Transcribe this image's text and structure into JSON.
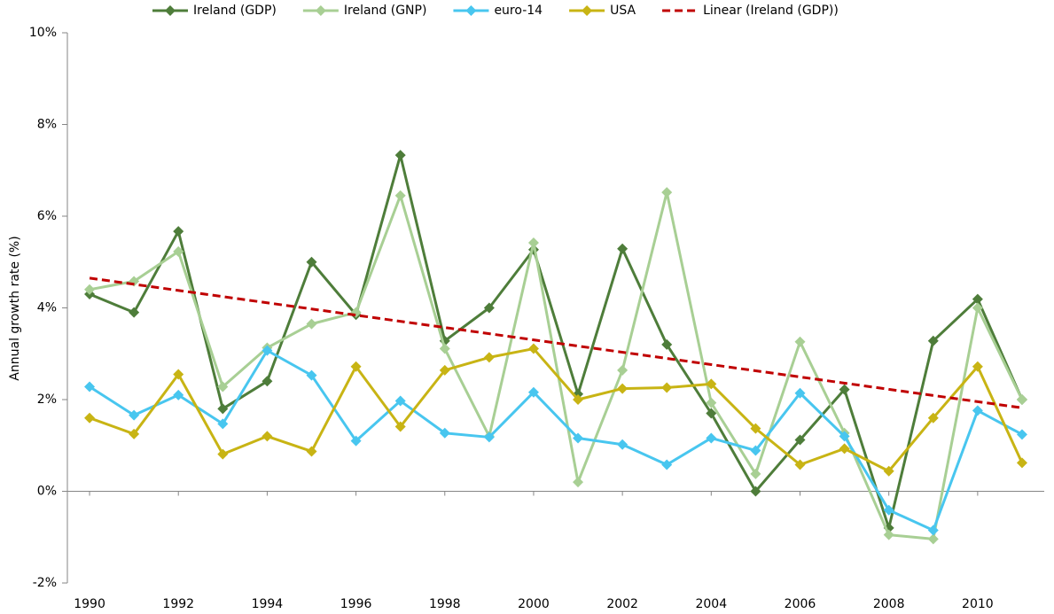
{
  "chart_data": {
    "type": "line",
    "y_label": "Annual growth rate (%)",
    "x": [
      1990,
      1991,
      1992,
      1993,
      1994,
      1995,
      1996,
      1997,
      1998,
      1999,
      2000,
      2001,
      2002,
      2003,
      2004,
      2005,
      2006,
      2007,
      2008,
      2009,
      2010,
      2011
    ],
    "xlim": [
      1989.5,
      2011.5
    ],
    "xticks": [
      1990,
      1992,
      1994,
      1996,
      1998,
      2000,
      2002,
      2004,
      2006,
      2008,
      2010
    ],
    "ylim": [
      -2,
      10
    ],
    "yticks": [
      {
        "value": -2,
        "label": "-2%"
      },
      {
        "value": 0,
        "label": "0%"
      },
      {
        "value": 2,
        "label": "2%"
      },
      {
        "value": 4,
        "label": "4%"
      },
      {
        "value": 6,
        "label": "6%"
      },
      {
        "value": 8,
        "label": "8%"
      },
      {
        "value": 10,
        "label": "10%"
      }
    ],
    "grid": false,
    "legend": "top",
    "series": [
      {
        "name": "Ireland (GDP)",
        "color": "#4e7d3a",
        "values": [
          4.3,
          3.9,
          5.67,
          1.8,
          2.4,
          5.0,
          3.85,
          7.33,
          3.28,
          4.0,
          5.27,
          2.12,
          5.29,
          3.2,
          1.7,
          0.0,
          1.12,
          2.22,
          -0.8,
          3.28,
          4.19,
          2.0
        ]
      },
      {
        "name": "Ireland (GNP)",
        "color": "#a8cf94",
        "values": [
          4.4,
          4.58,
          5.23,
          2.28,
          3.13,
          3.65,
          3.9,
          6.45,
          3.11,
          1.2,
          5.42,
          0.2,
          2.64,
          6.52,
          1.93,
          0.38,
          3.26,
          1.27,
          -0.95,
          -1.04,
          4.0,
          2.0
        ]
      },
      {
        "name": "euro-14",
        "color": "#48c6ef",
        "values": [
          2.28,
          1.66,
          2.1,
          1.47,
          3.07,
          2.53,
          1.1,
          1.97,
          1.27,
          1.18,
          2.16,
          1.16,
          1.02,
          0.58,
          1.16,
          0.89,
          2.14,
          1.2,
          -0.41,
          -0.85,
          1.76,
          1.24
        ]
      },
      {
        "name": "USA",
        "color": "#c8b414",
        "values": [
          1.6,
          1.25,
          2.55,
          0.81,
          1.2,
          0.87,
          2.72,
          1.41,
          2.64,
          2.92,
          3.11,
          2.0,
          2.24,
          2.26,
          2.34,
          1.37,
          0.58,
          0.93,
          0.44,
          1.6,
          2.72,
          0.62
        ]
      }
    ],
    "trend": {
      "name": "Linear (Ireland (GDP))",
      "color": "#c00000",
      "x": [
        1990,
        2011
      ],
      "values": [
        4.65,
        1.82
      ]
    }
  }
}
